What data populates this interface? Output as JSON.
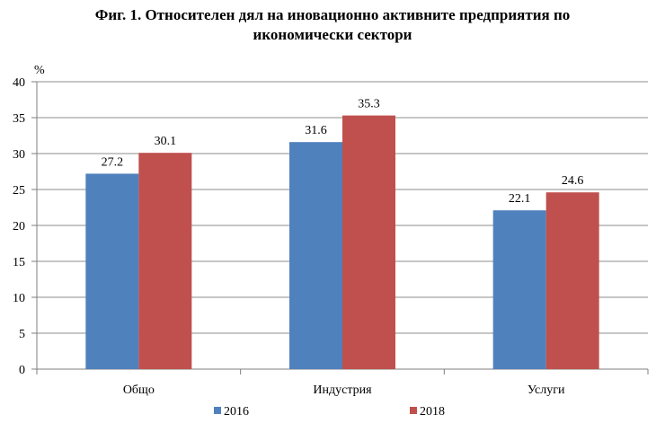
{
  "chart_data": {
    "type": "bar",
    "title_lines": [
      "Фиг. 1. Относителен дял на иновационно активните предприятия  по",
      "икономически сектори"
    ],
    "ylabel": "%",
    "ylim": [
      0,
      40
    ],
    "yticks": [
      0,
      5,
      10,
      15,
      20,
      25,
      30,
      35,
      40
    ],
    "grid": true,
    "legend": "bottom",
    "categories": [
      "Общо",
      "Индустрия",
      "Услуги"
    ],
    "series": [
      {
        "name": "2016",
        "color": "#4f81bd",
        "values": [
          27.2,
          31.6,
          22.1
        ],
        "labels": [
          "27.2",
          "31.6",
          "22.1"
        ]
      },
      {
        "name": "2018",
        "color": "#c0504d",
        "values": [
          30.1,
          35.3,
          24.6
        ],
        "labels": [
          "30.1",
          "35.3",
          "24.6"
        ]
      }
    ]
  }
}
